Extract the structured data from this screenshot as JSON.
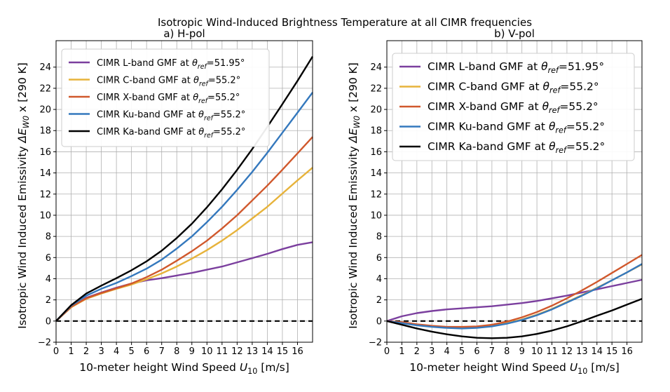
{
  "figure": {
    "suptitle": "Isotropic Wind-Induced Brightness Temperature at all CIMR frequencies"
  },
  "colors": {
    "L": "#7b3f9e",
    "C": "#e7b33b",
    "X": "#d0582c",
    "Ku": "#3478bd",
    "Ka": "#000000"
  },
  "chart_data": [
    {
      "type": "line",
      "title": "a) H-pol",
      "xlabel": "10-meter height Wind Speed U10 [m/s]",
      "ylabel": "Isotropic Wind Induced Emissivity  ΔE_W0 x [290 K]",
      "xlim": [
        0,
        17
      ],
      "ylim": [
        -2,
        26.5
      ],
      "xticks": [
        0,
        1,
        2,
        3,
        4,
        5,
        6,
        7,
        8,
        9,
        10,
        11,
        12,
        13,
        14,
        15,
        16
      ],
      "yticks": [
        -2,
        0,
        2,
        4,
        6,
        8,
        10,
        12,
        14,
        16,
        18,
        20,
        22,
        24
      ],
      "grid": true,
      "legend_position": "upper-left",
      "reference_line": {
        "y": 0,
        "style": "dashed",
        "color": "#000000"
      },
      "x": [
        0,
        1,
        2,
        3,
        4,
        5,
        6,
        7,
        8,
        9,
        10,
        11,
        12,
        13,
        14,
        15,
        16,
        17
      ],
      "series": [
        {
          "key": "L",
          "name": "CIMR L-band GMF at θref=51.95°",
          "values": [
            0,
            1.3,
            2.2,
            2.7,
            3.15,
            3.55,
            3.85,
            4.05,
            4.3,
            4.55,
            4.85,
            5.15,
            5.55,
            5.95,
            6.35,
            6.8,
            7.2,
            7.45
          ]
        },
        {
          "key": "C",
          "name": "CIMR C-band GMF at θref=55.2°",
          "values": [
            0,
            1.3,
            2.1,
            2.6,
            3.05,
            3.45,
            3.95,
            4.5,
            5.15,
            5.9,
            6.7,
            7.6,
            8.6,
            9.7,
            10.8,
            12.05,
            13.3,
            14.5
          ]
        },
        {
          "key": "X",
          "name": "CIMR X-band GMF at θref=55.2°",
          "values": [
            0,
            1.35,
            2.15,
            2.65,
            3.1,
            3.55,
            4.15,
            4.85,
            5.7,
            6.6,
            7.6,
            8.75,
            10.0,
            11.4,
            12.8,
            14.3,
            15.85,
            17.4
          ]
        },
        {
          "key": "Ku",
          "name": "CIMR Ku-band GMF at θref=55.2°",
          "values": [
            0,
            1.45,
            2.4,
            3.05,
            3.6,
            4.25,
            4.95,
            5.8,
            6.85,
            8.0,
            9.35,
            10.8,
            12.4,
            14.1,
            15.9,
            17.8,
            19.7,
            21.6
          ]
        },
        {
          "key": "Ka",
          "name": "CIMR Ka-band GMF at θref=55.2°",
          "values": [
            0,
            1.5,
            2.6,
            3.35,
            4.05,
            4.8,
            5.65,
            6.65,
            7.85,
            9.2,
            10.75,
            12.45,
            14.3,
            16.25,
            18.35,
            20.5,
            22.7,
            25.0
          ]
        }
      ]
    },
    {
      "type": "line",
      "title": "b) V-pol",
      "xlabel": "10-meter height Wind Speed U10 [m/s]",
      "ylabel": "Isotropic Wind Induced Emissivity  ΔE_W0 x [290 K]",
      "xlim": [
        0,
        17
      ],
      "ylim": [
        -2,
        26.5
      ],
      "xticks": [
        0,
        1,
        2,
        3,
        4,
        5,
        6,
        7,
        8,
        9,
        10,
        11,
        12,
        13,
        14,
        15,
        16
      ],
      "yticks": [
        -2,
        0,
        2,
        4,
        6,
        8,
        10,
        12,
        14,
        16,
        18,
        20,
        22,
        24
      ],
      "grid": true,
      "legend_position": "upper-left",
      "reference_line": {
        "y": 0,
        "style": "dashed",
        "color": "#000000"
      },
      "x": [
        0,
        1,
        2,
        3,
        4,
        5,
        6,
        7,
        8,
        9,
        10,
        11,
        12,
        13,
        14,
        15,
        16,
        17
      ],
      "series": [
        {
          "key": "L",
          "name": "CIMR L-band GMF at θref=51.95°",
          "values": [
            0,
            0.45,
            0.75,
            0.95,
            1.1,
            1.2,
            1.3,
            1.4,
            1.55,
            1.7,
            1.9,
            2.15,
            2.4,
            2.7,
            3.0,
            3.3,
            3.6,
            3.9
          ]
        },
        {
          "key": "C",
          "name": "CIMR C-band GMF at θref=55.2°",
          "values": [
            0,
            -0.15,
            -0.35,
            -0.5,
            -0.6,
            -0.62,
            -0.6,
            -0.45,
            -0.2,
            0.15,
            0.6,
            1.15,
            1.8,
            2.45,
            3.15,
            3.85,
            4.6,
            5.35
          ]
        },
        {
          "key": "X",
          "name": "CIMR X-band GMF at θref=55.2°",
          "values": [
            0,
            -0.1,
            -0.3,
            -0.45,
            -0.55,
            -0.55,
            -0.5,
            -0.35,
            -0.05,
            0.35,
            0.85,
            1.45,
            2.15,
            2.9,
            3.7,
            4.55,
            5.4,
            6.25
          ]
        },
        {
          "key": "Ku",
          "name": "CIMR Ku-band GMF at θref=55.2°",
          "values": [
            0,
            -0.2,
            -0.4,
            -0.55,
            -0.65,
            -0.7,
            -0.65,
            -0.5,
            -0.25,
            0.1,
            0.55,
            1.1,
            1.75,
            2.4,
            3.1,
            3.85,
            4.6,
            5.4
          ]
        },
        {
          "key": "Ka",
          "name": "CIMR Ka-band GMF at θref=55.2°",
          "values": [
            0,
            -0.35,
            -0.7,
            -1.0,
            -1.25,
            -1.45,
            -1.58,
            -1.62,
            -1.58,
            -1.45,
            -1.22,
            -0.9,
            -0.5,
            -0.02,
            0.5,
            1.0,
            1.55,
            2.1
          ]
        }
      ]
    }
  ]
}
